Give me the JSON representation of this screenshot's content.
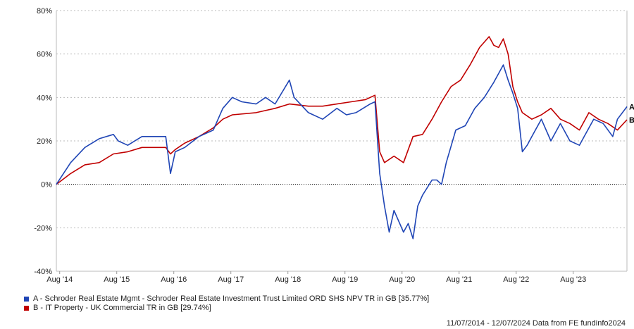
{
  "chart_data": {
    "type": "line",
    "title": "",
    "xlabel": "",
    "ylabel": "",
    "x_unit": "months since 11/07/2014",
    "xlim": [
      0,
      120
    ],
    "ylim": [
      -40,
      80
    ],
    "yticks": [
      -40,
      -20,
      0,
      20,
      40,
      60,
      80
    ],
    "ytick_labels": [
      "-40%",
      "-20%",
      "0%",
      "20%",
      "40%",
      "60%",
      "80%"
    ],
    "xticks": [
      0.7,
      12.7,
      24.7,
      36.7,
      48.7,
      60.7,
      72.7,
      84.7,
      96.7,
      108.7
    ],
    "xtick_labels": [
      "Aug '14",
      "Aug '15",
      "Aug '16",
      "Aug '17",
      "Aug '18",
      "Aug '19",
      "Aug '20",
      "Aug '21",
      "Aug '22",
      "Aug '23"
    ],
    "grid": "horizontal dotted",
    "legend_position": "bottom-left",
    "series": [
      {
        "name": "A - Schroder Real Estate Mgmt - Schroder Real Estate Investment Trust Limited ORD SHS NPV TR in GB [35.77%]",
        "tag": "A",
        "color": "#1f45b5",
        "points": [
          [
            0,
            0
          ],
          [
            3,
            10
          ],
          [
            6,
            17
          ],
          [
            9,
            21
          ],
          [
            12,
            23
          ],
          [
            13,
            20
          ],
          [
            15,
            18
          ],
          [
            18,
            22
          ],
          [
            21,
            22
          ],
          [
            23,
            22
          ],
          [
            24,
            5
          ],
          [
            25,
            15
          ],
          [
            27,
            17
          ],
          [
            30,
            22
          ],
          [
            33,
            25
          ],
          [
            35,
            35
          ],
          [
            37,
            40
          ],
          [
            39,
            38
          ],
          [
            42,
            37
          ],
          [
            44,
            40
          ],
          [
            46,
            37
          ],
          [
            49,
            48
          ],
          [
            50,
            40
          ],
          [
            53,
            33
          ],
          [
            56,
            30
          ],
          [
            59,
            35
          ],
          [
            61,
            32
          ],
          [
            63,
            33
          ],
          [
            66,
            37
          ],
          [
            67,
            38
          ],
          [
            68,
            5
          ],
          [
            69,
            -10
          ],
          [
            70,
            -22
          ],
          [
            71,
            -12
          ],
          [
            73,
            -22
          ],
          [
            74,
            -18
          ],
          [
            75,
            -25
          ],
          [
            76,
            -10
          ],
          [
            77,
            -5
          ],
          [
            79,
            2
          ],
          [
            80,
            2
          ],
          [
            81,
            0
          ],
          [
            82,
            10
          ],
          [
            84,
            25
          ],
          [
            86,
            27
          ],
          [
            88,
            35
          ],
          [
            90,
            40
          ],
          [
            92,
            47
          ],
          [
            94,
            55
          ],
          [
            95,
            48
          ],
          [
            96,
            42
          ],
          [
            97,
            35
          ],
          [
            98,
            15
          ],
          [
            99,
            18
          ],
          [
            100,
            22
          ],
          [
            102,
            30
          ],
          [
            104,
            20
          ],
          [
            106,
            28
          ],
          [
            108,
            20
          ],
          [
            110,
            18
          ],
          [
            111,
            22
          ],
          [
            113,
            30
          ],
          [
            115,
            28
          ],
          [
            117,
            22
          ],
          [
            118,
            30
          ],
          [
            120,
            35.77
          ]
        ]
      },
      {
        "name": "B - IT Property - UK Commercial TR in GB [29.74%]",
        "tag": "B",
        "color": "#c00000",
        "points": [
          [
            0,
            0
          ],
          [
            3,
            5
          ],
          [
            6,
            9
          ],
          [
            9,
            10
          ],
          [
            12,
            14
          ],
          [
            15,
            15
          ],
          [
            18,
            17
          ],
          [
            21,
            17
          ],
          [
            23,
            17
          ],
          [
            24,
            14
          ],
          [
            25,
            16
          ],
          [
            27,
            19
          ],
          [
            30,
            22
          ],
          [
            33,
            26
          ],
          [
            35,
            30
          ],
          [
            37,
            32
          ],
          [
            42,
            33
          ],
          [
            46,
            35
          ],
          [
            49,
            37
          ],
          [
            53,
            36
          ],
          [
            56,
            36
          ],
          [
            59,
            37
          ],
          [
            62,
            38
          ],
          [
            65,
            39
          ],
          [
            67,
            41
          ],
          [
            68,
            15
          ],
          [
            69,
            10
          ],
          [
            71,
            13
          ],
          [
            73,
            10
          ],
          [
            75,
            22
          ],
          [
            77,
            23
          ],
          [
            79,
            30
          ],
          [
            81,
            38
          ],
          [
            83,
            45
          ],
          [
            85,
            48
          ],
          [
            87,
            55
          ],
          [
            89,
            63
          ],
          [
            91,
            68
          ],
          [
            92,
            64
          ],
          [
            93,
            63
          ],
          [
            94,
            67
          ],
          [
            95,
            60
          ],
          [
            96,
            45
          ],
          [
            97,
            38
          ],
          [
            98,
            33
          ],
          [
            100,
            30
          ],
          [
            102,
            32
          ],
          [
            104,
            35
          ],
          [
            106,
            30
          ],
          [
            108,
            28
          ],
          [
            110,
            25
          ],
          [
            112,
            33
          ],
          [
            114,
            30
          ],
          [
            116,
            28
          ],
          [
            118,
            25
          ],
          [
            120,
            29.74
          ]
        ]
      }
    ]
  },
  "legend": [
    {
      "label": "A - Schroder Real Estate Mgmt - Schroder Real Estate Investment Trust Limited ORD SHS NPV TR in GB [35.77%]",
      "color": "#1f45b5"
    },
    {
      "label": "B - IT Property - UK Commercial TR in GB [29.74%]",
      "color": "#c00000"
    }
  ],
  "footer": "11/07/2014 - 12/07/2024 Data from FE fundinfo2024"
}
